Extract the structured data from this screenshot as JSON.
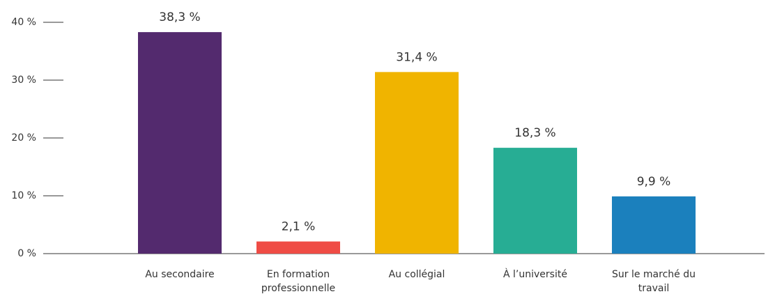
{
  "chart_data": {
    "type": "bar",
    "categories": [
      "Au secondaire",
      "En formation professionnelle",
      "Au collégial",
      "À l’université",
      "Sur le marché du travail"
    ],
    "values": [
      38.3,
      2.1,
      31.4,
      18.3,
      9.9
    ],
    "value_labels": [
      "38,3 %",
      "2,1 %",
      "31,4 %",
      "18,3 %",
      "9,9 %"
    ],
    "colors": [
      "#532a6e",
      "#ef4c45",
      "#f0b400",
      "#27ad94",
      "#1b80bd"
    ],
    "ylim": [
      0,
      40
    ],
    "yticks": [
      {
        "value": 0,
        "label": "0 %"
      },
      {
        "value": 10,
        "label": "10 %"
      },
      {
        "value": 20,
        "label": "20 %"
      },
      {
        "value": 30,
        "label": "30 %"
      },
      {
        "value": 40,
        "label": "40 %"
      }
    ]
  }
}
